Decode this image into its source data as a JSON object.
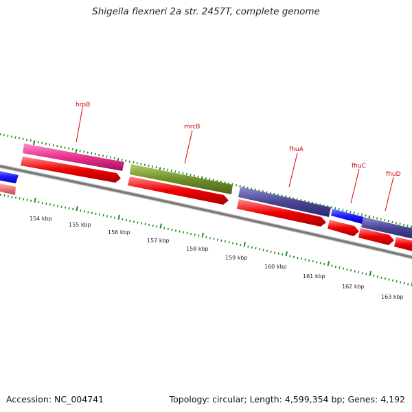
{
  "title": "Shigella flexneri 2a str. 2457T, complete genome",
  "accession_text": "Accession: NC_004741",
  "summary_text": "Topology: circular; Length: 4,599,354 bp; Genes: 4,192",
  "scale_labels": [
    "154 kbp",
    "155 kbp",
    "156 kbp",
    "157 kbp",
    "158 kbp",
    "159 kbp",
    "160 kbp",
    "161 kbp",
    "162 kbp",
    "163 kbp"
  ],
  "gene_labels": [
    "hrpB",
    "mrcB",
    "fhuA",
    "fhuC",
    "fhuD"
  ],
  "colors": {
    "backbone": "#7a7a7a",
    "cds": "#ee0000",
    "gene_label": "#d40000",
    "scale_ticks": "#1a8a1a",
    "feature_pink": "#e8308f",
    "feature_olive": "#6f8f2a",
    "feature_purple": "#4a4592",
    "feature_blue": "#1a1aff",
    "feature_salmon": "#ee7777"
  }
}
